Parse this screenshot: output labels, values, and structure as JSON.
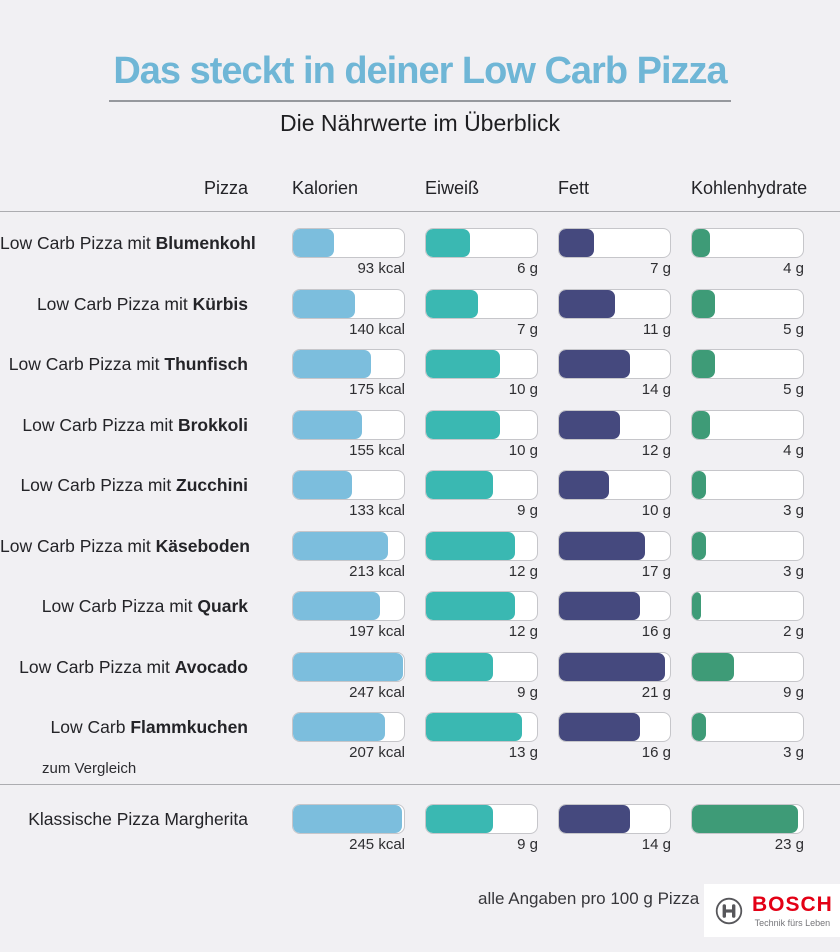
{
  "chart_data": {
    "type": "bar",
    "title": "Das steckt in deiner Low Carb Pizza",
    "subtitle": "Die Nährwerte im Überblick",
    "columns": [
      "Pizza",
      "Kalorien",
      "Eiweiß",
      "Fett",
      "Kohlenhydrate"
    ],
    "legend_position": "top",
    "grid": false,
    "metrics": [
      {
        "key": "kalorien",
        "unit": "kcal",
        "max": 250,
        "color": "#7cbedd"
      },
      {
        "key": "eiweiss",
        "unit": "g",
        "max": 15,
        "color": "#3ab8b2"
      },
      {
        "key": "fett",
        "unit": "g",
        "max": 22,
        "color": "#45497e"
      },
      {
        "key": "kohlenhydrate",
        "unit": "g",
        "max": 24,
        "color": "#3e9b77"
      }
    ],
    "rows": [
      {
        "prefix": "Low Carb Pizza mit",
        "name": "Blumenkohl",
        "values": [
          93,
          6,
          7,
          4
        ]
      },
      {
        "prefix": "Low Carb Pizza mit",
        "name": "Kürbis",
        "values": [
          140,
          7,
          11,
          5
        ]
      },
      {
        "prefix": "Low Carb Pizza mit",
        "name": "Thunfisch",
        "values": [
          175,
          10,
          14,
          5
        ]
      },
      {
        "prefix": "Low Carb Pizza mit",
        "name": "Brokkoli",
        "values": [
          155,
          10,
          12,
          4
        ]
      },
      {
        "prefix": "Low Carb Pizza mit",
        "name": "Zucchini",
        "values": [
          133,
          9,
          10,
          3
        ]
      },
      {
        "prefix": "Low Carb Pizza mit",
        "name": "Käseboden",
        "values": [
          213,
          12,
          17,
          3
        ]
      },
      {
        "prefix": "Low Carb Pizza mit",
        "name": "Quark",
        "values": [
          197,
          12,
          16,
          2
        ]
      },
      {
        "prefix": "Low Carb Pizza mit",
        "name": "Avocado",
        "values": [
          247,
          9,
          21,
          9
        ]
      },
      {
        "prefix": "Low Carb",
        "name": "Flammkuchen",
        "values": [
          207,
          13,
          16,
          3
        ]
      }
    ],
    "divider_label": "zum Vergleich",
    "comparison_row": {
      "prefix": "Klassische Pizza Margherita",
      "name": "",
      "values": [
        245,
        9,
        14,
        23
      ]
    },
    "note": "alle Angaben pro 100 g Pizza"
  },
  "colors": {
    "background": "#f1f0f3",
    "title": "#6fb6d6",
    "kalorien_bar": "#7cbedd",
    "eiweiss_bar": "#3ab8b2",
    "fett_bar": "#45497e",
    "kohlenhydrate_bar": "#3e9b77",
    "bosch_red": "#e30015"
  },
  "brand": {
    "name": "BOSCH",
    "tagline": "Technik fürs Leben",
    "icon": "bosch-armature-icon"
  }
}
